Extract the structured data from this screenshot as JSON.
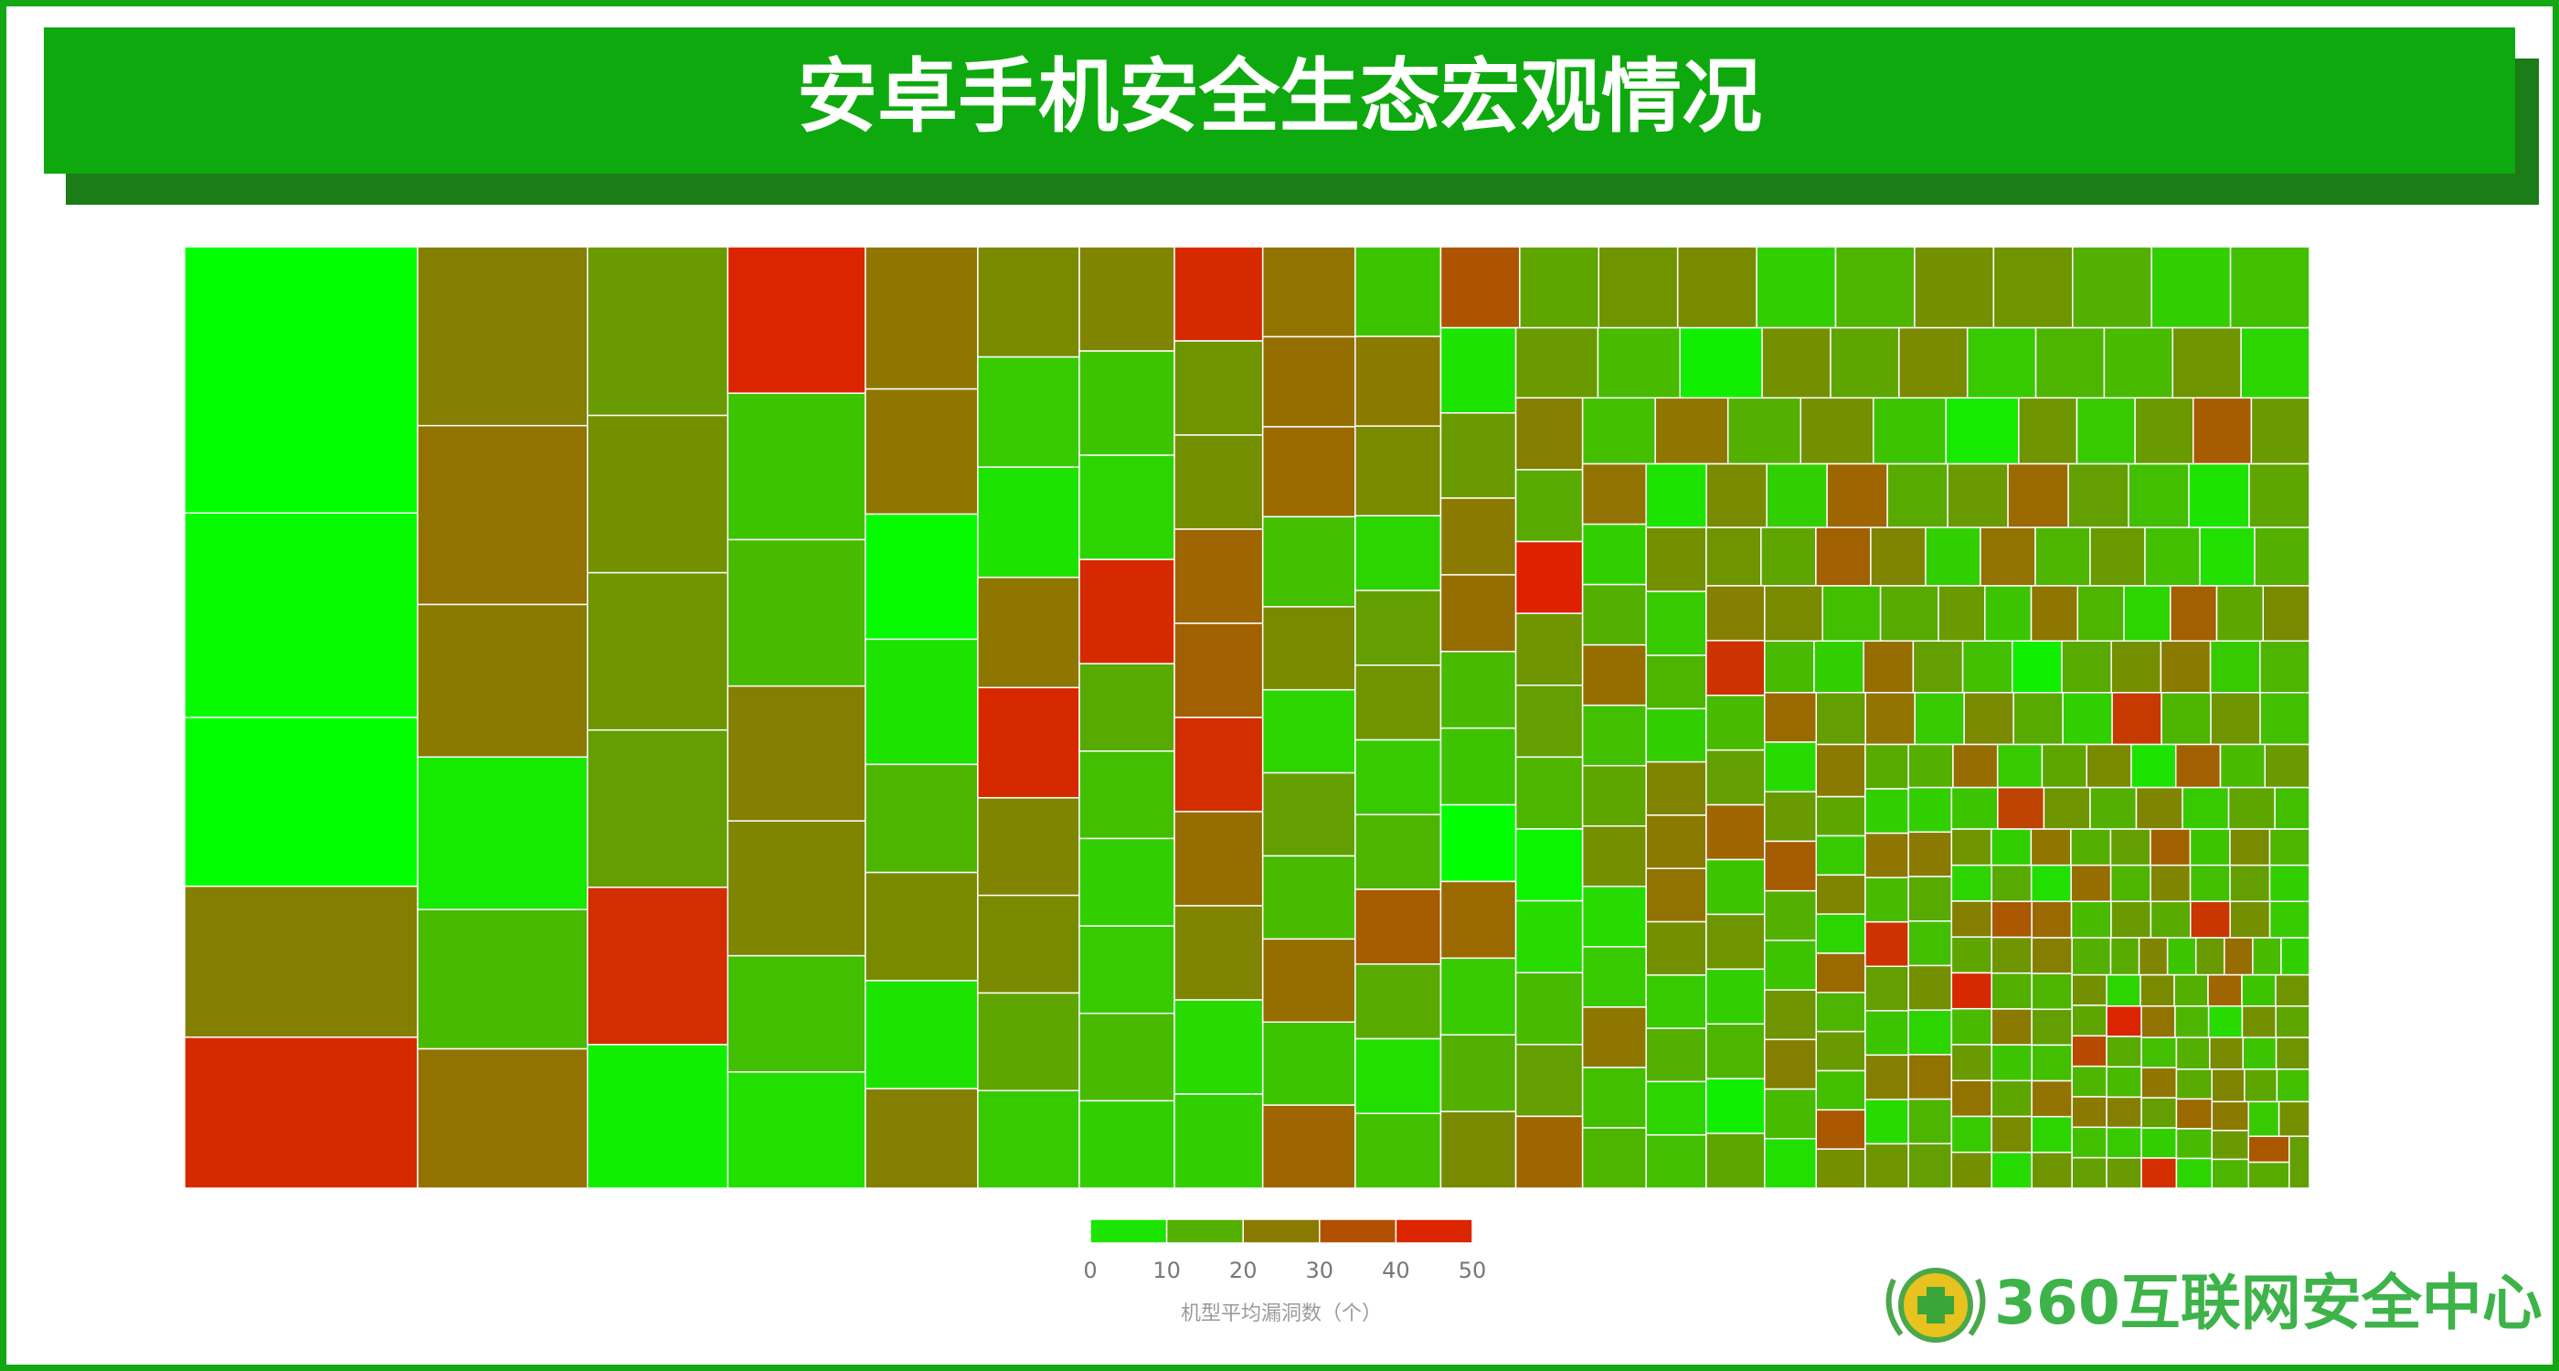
{
  "header": {
    "title": "安卓手机安全生态宏观情况"
  },
  "chart_data": {
    "type": "treemap",
    "colors": [
      "#00ff00",
      "#8a7a00",
      "#ee1000"
    ],
    "groups": [
      {
        "size": 19400,
        "values": [
          0
        ]
      },
      {
        "size": 14900,
        "values": [
          1
        ]
      },
      {
        "size": 12300,
        "values": [
          0
        ]
      },
      {
        "size": 11000,
        "values": [
          24,
          44
        ]
      },
      {
        "size": 9500,
        "values": [
          24,
          27
        ]
      },
      {
        "size": 8100,
        "values": [
          25,
          4
        ]
      },
      {
        "size": 7400,
        "values": [
          13,
          27,
          19
        ]
      },
      {
        "size": 6900,
        "values": [
          21,
          20,
          18,
          43
        ]
      },
      {
        "size": 6300,
        "values": [
          3,
          45,
          11,
          13
        ]
      },
      {
        "size": 5800,
        "values": [
          24,
          23
        ]
      },
      {
        "size": 5000,
        "values": [
          12,
          6,
          26
        ]
      },
      {
        "size": 4400,
        "values": [
          26,
          1,
          5
        ]
      },
      {
        "size": 3800,
        "values": [
          14,
          22,
          5
        ]
      },
      {
        "size": 3500,
        "values": [
          24,
          22,
          10,
          5,
          26,
          44
        ]
      },
      {
        "size": 3100,
        "values": [
          23,
          22,
          17,
          10,
          23,
          11,
          8,
          44
        ]
      },
      {
        "size": 2600,
        "values": [
          16,
          12,
          9,
          10,
          13,
          9,
          44,
          20,
          21,
          30,
          31,
          43,
          28,
          23,
          7,
          9,
          27,
          28,
          29,
          12
        ]
      },
      {
        "size": 2400,
        "values": [
          22,
          8,
          18,
          13,
          28,
          11,
          30,
          11,
          25,
          22
        ]
      },
      {
        "size": 2000,
        "values": [
          8,
          18,
          20,
          10,
          14,
          32,
          16,
          6,
          12,
          34,
          17,
          20,
          22,
          9,
          14,
          21,
          20,
          15,
          9,
          12,
          5,
          19
        ]
      },
      {
        "size": 1800,
        "values": [
          25,
          28,
          13,
          11,
          0,
          29,
          10,
          15,
          22,
          19,
          13,
          3
        ]
      },
      {
        "size": 1500,
        "values": [
          21,
          17,
          22,
          10,
          14,
          13,
          20,
          8,
          24,
          16,
          46,
          20,
          18,
          14,
          2,
          7,
          13,
          18,
          30,
          12,
          26,
          15,
          21,
          11,
          4
        ]
      },
      {
        "size": 1200,
        "values": [
          20,
          10,
          19,
          32,
          19,
          27,
          9,
          15,
          28,
          12,
          17,
          21,
          7,
          10,
          26,
          12,
          14,
          5,
          22,
          9,
          30,
          16,
          19,
          29,
          18,
          12,
          5,
          17,
          21,
          10
        ]
      },
      {
        "size": 1000,
        "values": [
          14,
          9,
          23,
          25,
          27,
          21,
          10,
          15,
          8,
          12,
          20,
          17,
          31,
          23,
          9,
          27,
          14,
          19,
          12,
          6,
          15,
          24,
          42,
          13,
          18,
          30,
          11,
          20,
          9,
          14,
          3,
          17,
          22,
          12,
          16
        ]
      },
      {
        "size": 800,
        "values": [
          19,
          11,
          26,
          14,
          8,
          31,
          17,
          22,
          13,
          9,
          28,
          18,
          12,
          3,
          16,
          21,
          25,
          10,
          14,
          29,
          7,
          19,
          32,
          15,
          11,
          20,
          24,
          13,
          6,
          18,
          27,
          10,
          22,
          16,
          9,
          40,
          14,
          20,
          12,
          25
        ]
      },
      {
        "size": 600,
        "values": [
          17,
          10,
          23,
          8,
          29,
          14,
          19,
          12,
          33,
          21,
          16,
          9,
          26,
          13,
          42,
          18,
          11,
          24,
          7,
          20,
          15,
          28,
          10,
          17,
          22,
          5,
          31,
          13,
          19,
          9,
          25,
          16,
          12,
          21,
          8,
          27,
          14,
          18,
          11,
          38,
          20,
          15,
          23,
          10,
          17
        ]
      },
      {
        "size": 450,
        "values": [
          12,
          20,
          9,
          26,
          15,
          18,
          31,
          11,
          22,
          14,
          8,
          24,
          17,
          44,
          13,
          19,
          27,
          10,
          21,
          16,
          6,
          28,
          14,
          23,
          12,
          18,
          9,
          33,
          20,
          15,
          25,
          11,
          17,
          22,
          7,
          29,
          13,
          19,
          16,
          41,
          21,
          10,
          24,
          14,
          18,
          12,
          27,
          8,
          20,
          15
        ]
      },
      {
        "size": 330,
        "values": [
          16,
          23,
          11,
          19,
          28,
          13,
          9,
          21,
          17,
          36,
          14,
          25,
          12,
          18,
          8,
          22,
          15,
          30,
          11,
          20,
          45,
          16,
          13,
          24,
          10,
          19,
          27,
          14,
          7,
          21,
          17,
          12,
          26,
          18,
          9,
          43,
          15,
          22,
          11,
          20,
          16,
          29,
          13,
          8,
          23,
          17,
          12,
          25,
          19,
          14,
          10,
          21,
          33,
          16,
          18
        ]
      }
    ],
    "legend": {
      "ticks": [
        0,
        10,
        20,
        30,
        40,
        50
      ],
      "title": "机型平均漏洞数（个）"
    }
  },
  "logo": {
    "text": "360互联网安全中心"
  }
}
